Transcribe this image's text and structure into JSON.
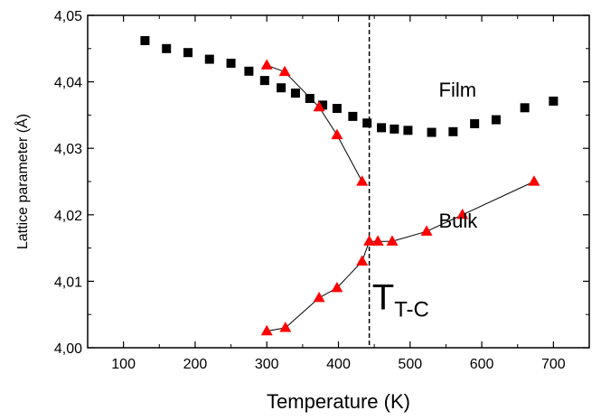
{
  "chart_data": {
    "type": "scatter",
    "xlabel": "Temperature (K)",
    "ylabel": "Lattice parameter (Å)",
    "xlim": [
      50,
      750
    ],
    "ylim": [
      4.0,
      4.05
    ],
    "xticks": [
      100,
      200,
      300,
      400,
      500,
      600,
      700
    ],
    "yticks": [
      4.0,
      4.01,
      4.02,
      4.03,
      4.04,
      4.05
    ],
    "xtick_labels": [
      "100",
      "200",
      "300",
      "400",
      "500",
      "600",
      "700"
    ],
    "ytick_labels": [
      "4,00",
      "4,01",
      "4,02",
      "4,03",
      "4,04",
      "4,05"
    ],
    "grid": false,
    "transition_temperature": 443,
    "annotations": {
      "film": "Film",
      "bulk": "Bulk",
      "tc_main": "T",
      "tc_sub": "T-C"
    },
    "series": [
      {
        "marker": "square",
        "color": "#000000",
        "connected": false,
        "x": [
          130,
          160,
          190,
          220,
          250,
          275,
          297,
          320,
          340,
          360,
          378,
          398,
          420,
          440,
          460,
          478,
          497,
          530,
          560,
          590,
          620,
          660,
          700
        ],
        "y": [
          4.0462,
          4.045,
          4.0444,
          4.0434,
          4.0428,
          4.0416,
          4.0402,
          4.0391,
          4.0383,
          4.0375,
          4.0365,
          4.036,
          4.0348,
          4.0338,
          4.0331,
          4.0329,
          4.0327,
          4.0324,
          4.0325,
          4.0337,
          4.0343,
          4.0361,
          4.0371
        ]
      },
      {
        "marker": "triangle",
        "color": "#ff0000",
        "connected": true,
        "x": [
          300,
          325,
          373,
          398,
          433
        ],
        "y": [
          4.0425,
          4.0415,
          4.0362,
          4.032,
          4.025
        ]
      },
      {
        "marker": "triangle",
        "color": "#ff0000",
        "connected": true,
        "x": [
          300,
          326,
          373,
          398,
          433,
          443,
          455,
          475,
          523,
          573,
          673
        ],
        "y": [
          4.0025,
          4.003,
          4.0075,
          4.009,
          4.013,
          4.016,
          4.016,
          4.016,
          4.0175,
          4.02,
          4.025
        ]
      }
    ]
  }
}
